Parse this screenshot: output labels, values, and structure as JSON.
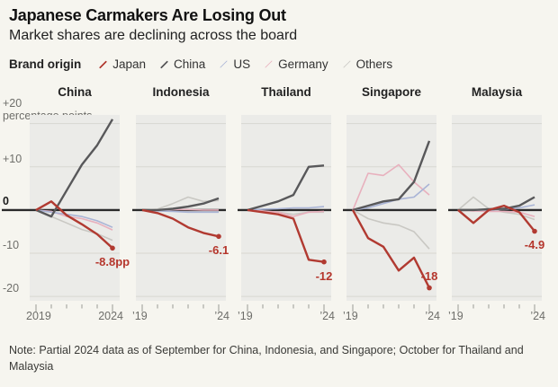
{
  "header": {
    "title": "Japanese Carmakers Are Losing Out",
    "subtitle": "Market shares are declining across the board"
  },
  "legend": {
    "label": "Brand origin",
    "items": [
      {
        "name": "Japan",
        "color": "#b13a31",
        "weight": 2.4
      },
      {
        "name": "China",
        "color": "#58585a",
        "weight": 2.4
      },
      {
        "name": "US",
        "color": "#a9b4d6",
        "weight": 1.6
      },
      {
        "name": "Germany",
        "color": "#e8b0bd",
        "weight": 1.6
      },
      {
        "name": "Others",
        "color": "#c9c8c3",
        "weight": 1.6
      }
    ]
  },
  "chart_data": {
    "type": "line",
    "unit_label": "percentage points",
    "x": [
      2019,
      2020,
      2021,
      2022,
      2023,
      2024
    ],
    "ylim": [
      -21,
      22
    ],
    "grid": true,
    "yticks": [
      {
        "label": "+20",
        "value": 20
      },
      {
        "label": "+10",
        "value": 10
      },
      {
        "label": "0",
        "value": 0
      },
      {
        "label": "-10",
        "value": -10
      },
      {
        "label": "-20",
        "value": -20
      }
    ],
    "series_order": [
      "Others",
      "Germany",
      "US",
      "China",
      "Japan"
    ],
    "panels": [
      {
        "title": "China",
        "x_labels": [
          "2019",
          "2024"
        ],
        "end_label": "-8.8pp",
        "end_label_pos": "below",
        "series": {
          "Japan": [
            0,
            2,
            -1.2,
            -3.3,
            -5.6,
            -8.8
          ],
          "China": [
            0,
            -1.5,
            4.5,
            10.5,
            15,
            21
          ],
          "US": [
            0,
            -0.5,
            -1,
            -1.5,
            -2.5,
            -4
          ],
          "Germany": [
            0,
            -0.3,
            -1.5,
            -2,
            -3,
            -4.6
          ],
          "Others": [
            0,
            -1.5,
            -3,
            -4.5,
            -5.5,
            -7
          ]
        }
      },
      {
        "title": "Indonesia",
        "x_labels": [
          "’19",
          "’24"
        ],
        "end_label": "-6.1",
        "end_label_pos": "below",
        "series": {
          "Japan": [
            0,
            -0.7,
            -2,
            -4,
            -5.3,
            -6.1
          ],
          "China": [
            0,
            0,
            0.3,
            0.8,
            1.5,
            2.7
          ],
          "US": [
            0,
            -0.2,
            -0.3,
            -0.5,
            -0.5,
            -0.5
          ],
          "Germany": [
            0,
            0,
            0.1,
            0.1,
            0,
            0
          ],
          "Others": [
            0,
            0.2,
            1.5,
            3,
            2,
            2.2
          ]
        }
      },
      {
        "title": "Thailand",
        "x_labels": [
          "’19",
          "’24"
        ],
        "end_label": "-12",
        "end_label_pos": "below",
        "series": {
          "Japan": [
            0,
            -0.5,
            -1,
            -2,
            -11.5,
            -12
          ],
          "China": [
            0,
            1,
            2,
            3.5,
            10,
            10.3
          ],
          "US": [
            0,
            0.2,
            0.3,
            0.5,
            0.5,
            0.8
          ],
          "Germany": [
            0,
            -0.2,
            -0.5,
            -1.5,
            -0.5,
            -0.3
          ],
          "Others": [
            0,
            -0.3,
            -0.5,
            -1,
            -0.5,
            -0.5
          ]
        }
      },
      {
        "title": "Singapore",
        "x_labels": [
          "’19",
          "’24"
        ],
        "end_label": "-18",
        "end_label_pos": "above",
        "series": {
          "Japan": [
            0,
            -6.5,
            -8.5,
            -14,
            -11,
            -18
          ],
          "China": [
            0,
            1,
            2,
            2.5,
            6.5,
            16
          ],
          "US": [
            0,
            0.5,
            1.5,
            2.5,
            3,
            6
          ],
          "Germany": [
            0,
            8.5,
            8,
            10.5,
            6.5,
            3.5
          ],
          "Others": [
            0,
            -2,
            -3,
            -3.5,
            -5,
            -9
          ]
        }
      },
      {
        "title": "Malaysia",
        "x_labels": [
          "’19",
          "’24"
        ],
        "end_label": "-4.9",
        "end_label_pos": "below",
        "series": {
          "Japan": [
            0,
            -3,
            0,
            1,
            -0.5,
            -4.9
          ],
          "China": [
            0,
            0,
            0.2,
            0.3,
            1,
            3
          ],
          "US": [
            0,
            0,
            0,
            0.2,
            0.5,
            1.2
          ],
          "Germany": [
            0,
            -0.2,
            -0.3,
            -0.3,
            -0.5,
            -1.5
          ],
          "Others": [
            0,
            3,
            0.3,
            -0.5,
            -1,
            -2.2
          ]
        }
      }
    ]
  },
  "note": "Note: Partial 2024 data as of September for China, Indonesia, and Singapore; October for Thailand and Malaysia"
}
